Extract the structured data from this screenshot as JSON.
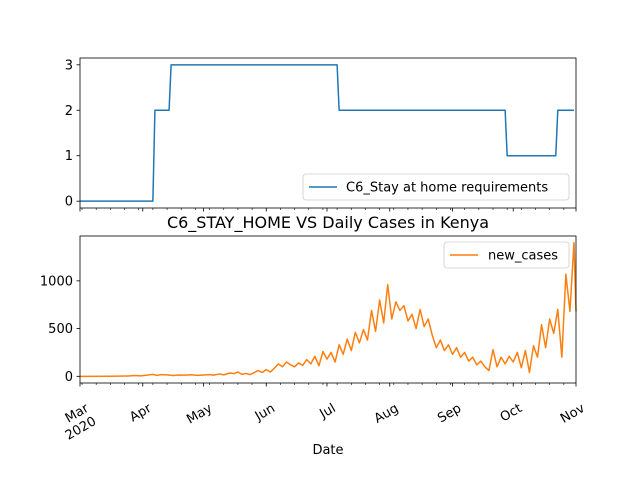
{
  "chart_data": [
    {
      "type": "line",
      "title": "",
      "xlabel": "",
      "ylabel": "",
      "ylim": [
        -0.15,
        3.15
      ],
      "yticks": [
        0,
        1,
        2,
        3
      ],
      "grid": false,
      "legend_placement": "lower-right",
      "series": [
        {
          "name": "C6_Stay at home requirements",
          "color": "#1f77b4",
          "points": [
            [
              "2020-03-01",
              0
            ],
            [
              "2020-04-06",
              0
            ],
            [
              "2020-04-07",
              2
            ],
            [
              "2020-04-14",
              2
            ],
            [
              "2020-04-15",
              3
            ],
            [
              "2020-07-06",
              3
            ],
            [
              "2020-07-07",
              2
            ],
            [
              "2020-09-27",
              2
            ],
            [
              "2020-09-28",
              1
            ],
            [
              "2020-10-22",
              1
            ],
            [
              "2020-10-23",
              2
            ],
            [
              "2020-10-31",
              2
            ]
          ]
        }
      ]
    },
    {
      "type": "line",
      "title": "C6_STAY_HOME VS Daily Cases in Kenya",
      "xlabel": "Date",
      "ylabel": "",
      "ylim": [
        -70,
        1470
      ],
      "yticks": [
        0,
        500,
        1000
      ],
      "grid": false,
      "legend_placement": "upper-right",
      "x_ticks": [
        {
          "date": "2020-03-01",
          "label": "Mar",
          "sublabel": "2020"
        },
        {
          "date": "2020-04-01",
          "label": "Apr"
        },
        {
          "date": "2020-05-01",
          "label": "May"
        },
        {
          "date": "2020-06-01",
          "label": "Jun"
        },
        {
          "date": "2020-07-01",
          "label": "Jul"
        },
        {
          "date": "2020-08-01",
          "label": "Aug"
        },
        {
          "date": "2020-09-01",
          "label": "Sep"
        },
        {
          "date": "2020-10-01",
          "label": "Oct"
        },
        {
          "date": "2020-11-01",
          "label": "Nov"
        }
      ],
      "series": [
        {
          "name": "new_cases",
          "color": "#ff7f0e",
          "points": [
            [
              "2020-03-01",
              0
            ],
            [
              "2020-03-15",
              1
            ],
            [
              "2020-03-25",
              3
            ],
            [
              "2020-03-28",
              8
            ],
            [
              "2020-03-31",
              5
            ],
            [
              "2020-04-03",
              12
            ],
            [
              "2020-04-06",
              20
            ],
            [
              "2020-04-08",
              10
            ],
            [
              "2020-04-10",
              18
            ],
            [
              "2020-04-13",
              15
            ],
            [
              "2020-04-16",
              8
            ],
            [
              "2020-04-19",
              14
            ],
            [
              "2020-04-22",
              12
            ],
            [
              "2020-04-25",
              16
            ],
            [
              "2020-04-28",
              10
            ],
            [
              "2020-05-01",
              14
            ],
            [
              "2020-05-04",
              18
            ],
            [
              "2020-05-06",
              12
            ],
            [
              "2020-05-09",
              25
            ],
            [
              "2020-05-11",
              15
            ],
            [
              "2020-05-14",
              35
            ],
            [
              "2020-05-16",
              28
            ],
            [
              "2020-05-18",
              45
            ],
            [
              "2020-05-20",
              20
            ],
            [
              "2020-05-22",
              30
            ],
            [
              "2020-05-24",
              18
            ],
            [
              "2020-05-26",
              38
            ],
            [
              "2020-05-28",
              60
            ],
            [
              "2020-05-30",
              40
            ],
            [
              "2020-06-01",
              70
            ],
            [
              "2020-06-03",
              45
            ],
            [
              "2020-06-05",
              85
            ],
            [
              "2020-06-07",
              130
            ],
            [
              "2020-06-09",
              100
            ],
            [
              "2020-06-11",
              150
            ],
            [
              "2020-06-13",
              120
            ],
            [
              "2020-06-15",
              100
            ],
            [
              "2020-06-17",
              140
            ],
            [
              "2020-06-19",
              115
            ],
            [
              "2020-06-21",
              175
            ],
            [
              "2020-06-23",
              130
            ],
            [
              "2020-06-25",
              210
            ],
            [
              "2020-06-27",
              110
            ],
            [
              "2020-06-29",
              260
            ],
            [
              "2020-07-01",
              180
            ],
            [
              "2020-07-03",
              250
            ],
            [
              "2020-07-05",
              150
            ],
            [
              "2020-07-07",
              330
            ],
            [
              "2020-07-09",
              230
            ],
            [
              "2020-07-11",
              390
            ],
            [
              "2020-07-13",
              270
            ],
            [
              "2020-07-15",
              460
            ],
            [
              "2020-07-17",
              350
            ],
            [
              "2020-07-19",
              490
            ],
            [
              "2020-07-21",
              380
            ],
            [
              "2020-07-23",
              690
            ],
            [
              "2020-07-25",
              470
            ],
            [
              "2020-07-27",
              800
            ],
            [
              "2020-07-29",
              560
            ],
            [
              "2020-07-31",
              960
            ],
            [
              "2020-08-02",
              600
            ],
            [
              "2020-08-04",
              780
            ],
            [
              "2020-08-06",
              690
            ],
            [
              "2020-08-08",
              740
            ],
            [
              "2020-08-10",
              580
            ],
            [
              "2020-08-12",
              650
            ],
            [
              "2020-08-14",
              500
            ],
            [
              "2020-08-16",
              700
            ],
            [
              "2020-08-18",
              520
            ],
            [
              "2020-08-20",
              600
            ],
            [
              "2020-08-22",
              430
            ],
            [
              "2020-08-24",
              300
            ],
            [
              "2020-08-26",
              380
            ],
            [
              "2020-08-28",
              270
            ],
            [
              "2020-08-30",
              330
            ],
            [
              "2020-09-01",
              230
            ],
            [
              "2020-09-03",
              300
            ],
            [
              "2020-09-05",
              200
            ],
            [
              "2020-09-07",
              250
            ],
            [
              "2020-09-09",
              160
            ],
            [
              "2020-09-11",
              200
            ],
            [
              "2020-09-13",
              120
            ],
            [
              "2020-09-15",
              160
            ],
            [
              "2020-09-17",
              100
            ],
            [
              "2020-09-19",
              60
            ],
            [
              "2020-09-21",
              280
            ],
            [
              "2020-09-23",
              100
            ],
            [
              "2020-09-25",
              200
            ],
            [
              "2020-09-27",
              130
            ],
            [
              "2020-09-29",
              210
            ],
            [
              "2020-10-01",
              150
            ],
            [
              "2020-10-03",
              250
            ],
            [
              "2020-10-05",
              90
            ],
            [
              "2020-10-07",
              270
            ],
            [
              "2020-10-09",
              40
            ],
            [
              "2020-10-11",
              320
            ],
            [
              "2020-10-13",
              200
            ],
            [
              "2020-10-15",
              540
            ],
            [
              "2020-10-17",
              300
            ],
            [
              "2020-10-19",
              600
            ],
            [
              "2020-10-21",
              450
            ],
            [
              "2020-10-23",
              700
            ],
            [
              "2020-10-25",
              200
            ],
            [
              "2020-10-27",
              1070
            ],
            [
              "2020-10-29",
              680
            ],
            [
              "2020-10-31",
              1400
            ],
            [
              "2020-11-01",
              680
            ]
          ]
        }
      ]
    }
  ]
}
